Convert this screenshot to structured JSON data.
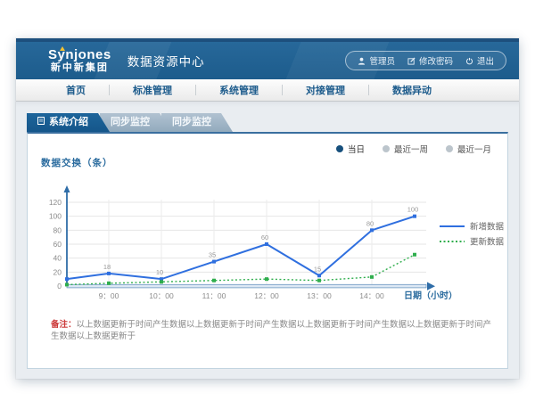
{
  "logo": {
    "brand": "Synjones",
    "subtitle": "新中新集团"
  },
  "header": {
    "title": "数据资源中心",
    "user_menu": [
      {
        "label": "管理员"
      },
      {
        "label": "修改密码"
      },
      {
        "label": "退出"
      }
    ]
  },
  "nav": {
    "items": [
      "首页",
      "标准管理",
      "系统管理",
      "对接管理",
      "数据异动"
    ]
  },
  "tabs": [
    {
      "label": "系统介绍",
      "active": true
    },
    {
      "label": "同步监控",
      "active": false
    },
    {
      "label": "同步监控",
      "active": false
    }
  ],
  "filters": {
    "options": [
      {
        "label": "当日",
        "selected": true
      },
      {
        "label": "最近一周",
        "selected": false
      },
      {
        "label": "最近一月",
        "selected": false
      }
    ]
  },
  "chart_data": {
    "type": "line",
    "title": "",
    "ylabel": "数据交换（条）",
    "xlabel": "日期（小时）",
    "x_ticks": [
      "9：00",
      "10：00",
      "11：00",
      "12：00",
      "13：00",
      "14：00"
    ],
    "y_ticks": [
      0,
      20,
      40,
      60,
      80,
      100,
      120
    ],
    "ylim": [
      0,
      130
    ],
    "grid": true,
    "legend_position": "right",
    "series": [
      {
        "name": "新增数据",
        "color": "#2f6fdf",
        "style": "solid",
        "values": [
          10,
          18,
          10,
          35,
          60,
          15,
          80,
          100
        ],
        "labels": [
          "",
          "18",
          "10",
          "35",
          "60",
          "15",
          "80",
          "100"
        ]
      },
      {
        "name": "更新数据",
        "color": "#2fae4d",
        "style": "dotted",
        "values": [
          2,
          4,
          6,
          8,
          10,
          8,
          13,
          45
        ],
        "labels": null
      }
    ]
  },
  "note": {
    "label": "备注：",
    "text": "以上数据更新于时间产生数据以上数据更新于时间产生数据以上数据更新于时间产生数据以上数据更新于时间产生数据以上数据更新于"
  },
  "colors": {
    "header_blue": "#1d5c8c",
    "navy_strip": "#1d4f7d",
    "accent_blue": "#15568a",
    "line_new": "#2f6fdf",
    "line_update": "#2fae4d"
  }
}
